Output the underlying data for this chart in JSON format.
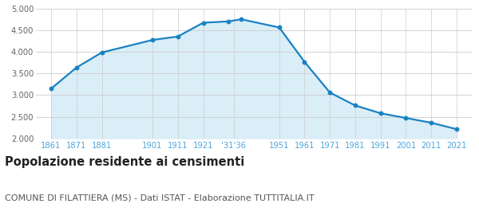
{
  "years": [
    1861,
    1871,
    1881,
    1901,
    1911,
    1921,
    1931,
    1936,
    1951,
    1961,
    1971,
    1981,
    1991,
    2001,
    2011,
    2021
  ],
  "population": [
    3150,
    3640,
    3990,
    4280,
    4360,
    4680,
    4710,
    4760,
    4570,
    3770,
    3060,
    2760,
    2580,
    2470,
    2360,
    2210
  ],
  "ylim": [
    2000,
    5000
  ],
  "yticks": [
    2000,
    2500,
    3000,
    3500,
    4000,
    4500,
    5000
  ],
  "line_color": "#1a82c4",
  "fill_color": "#daeef8",
  "marker_color": "#1a82c4",
  "grid_color": "#cccccc",
  "background_color": "#ffffff",
  "title": "Popolazione residente ai censimenti",
  "subtitle": "COMUNE DI FILATTIERA (MS) - Dati ISTAT - Elaborazione TUTTITALIA.IT",
  "title_fontsize": 10.5,
  "subtitle_fontsize": 8.0,
  "tick_label_color": "#4da6df",
  "ytick_label_color": "#666666"
}
